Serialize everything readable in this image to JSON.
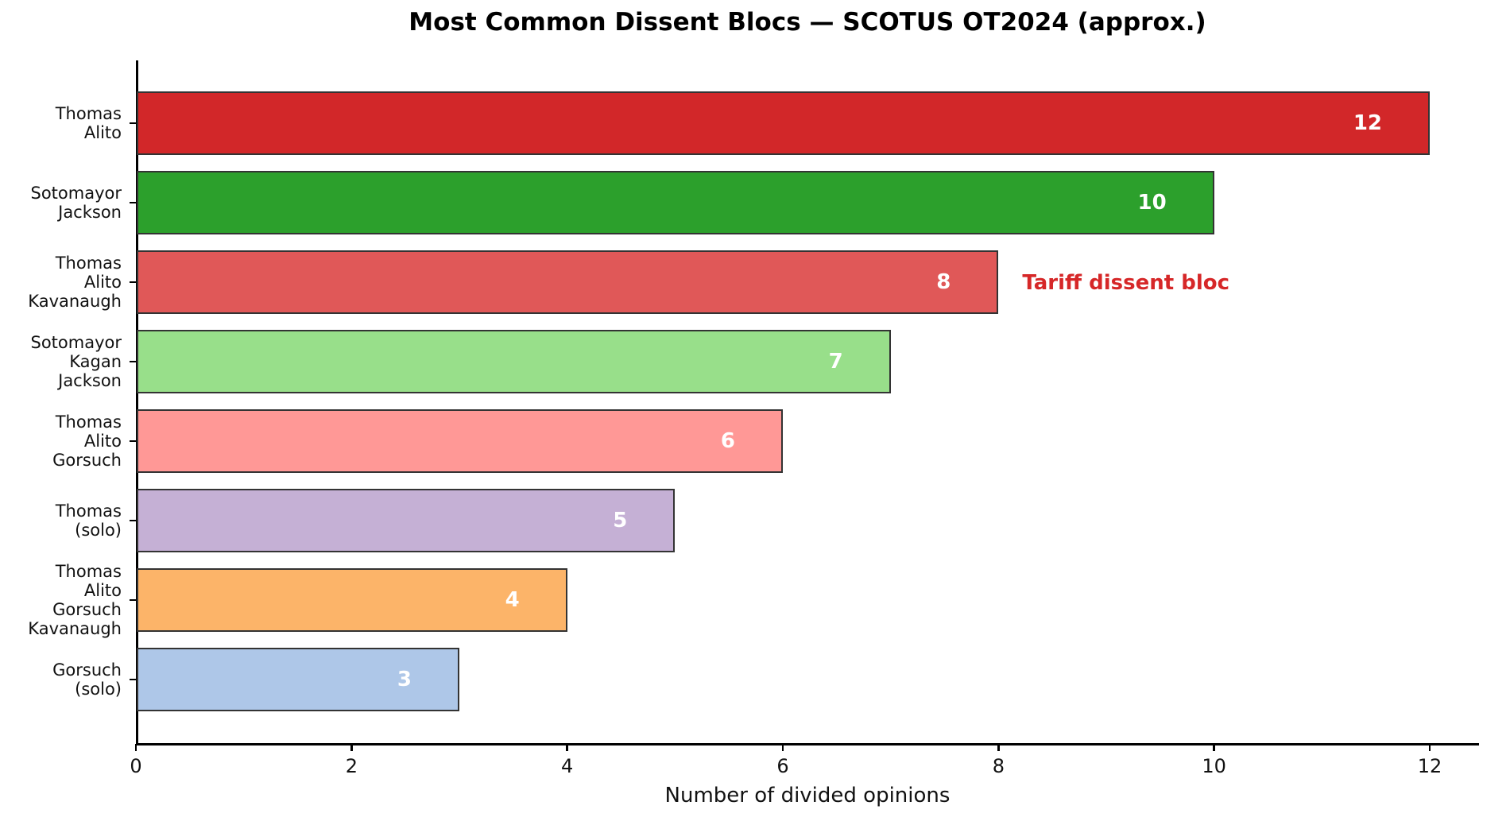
{
  "chart_data": {
    "type": "bar",
    "orientation": "horizontal",
    "title": "Most Common Dissent Blocs — SCOTUS OT2024 (approx.)",
    "xlabel": "Number of divided opinions",
    "ylabel": "",
    "grid": false,
    "legend_position": "none",
    "xlim": [
      0,
      12.45
    ],
    "xticks": [
      "0",
      "2",
      "4",
      "6",
      "8",
      "10",
      "12"
    ],
    "xtick_values": [
      0,
      2,
      4,
      6,
      8,
      10,
      12
    ],
    "categories": [
      "Thomas\nAlito",
      "Sotomayor\nJackson",
      "Thomas\nAlito\nKavanaugh",
      "Sotomayor\nKagan\nJackson",
      "Thomas\nAlito\nGorsuch",
      "Thomas\n(solo)",
      "Thomas\nAlito\nGorsuch\nKavanaugh",
      "Gorsuch\n(solo)"
    ],
    "values": [
      12,
      10,
      8,
      7,
      6,
      5,
      4,
      3
    ],
    "value_labels": [
      "12",
      "10",
      "8",
      "7",
      "6",
      "5",
      "4",
      "3"
    ],
    "bar_colors": [
      "#d22729",
      "#2ca02c",
      "#e05858",
      "#98df8a",
      "#ff9896",
      "#c5b0d5",
      "#fcb469",
      "#aec7e8"
    ],
    "bar_edge_color": "#333333",
    "value_label_color": "#ffffff",
    "axis_color": "#000000",
    "annotation": {
      "text": "Tariff dissent bloc",
      "color": "#d62728",
      "bar_index": 2
    }
  }
}
